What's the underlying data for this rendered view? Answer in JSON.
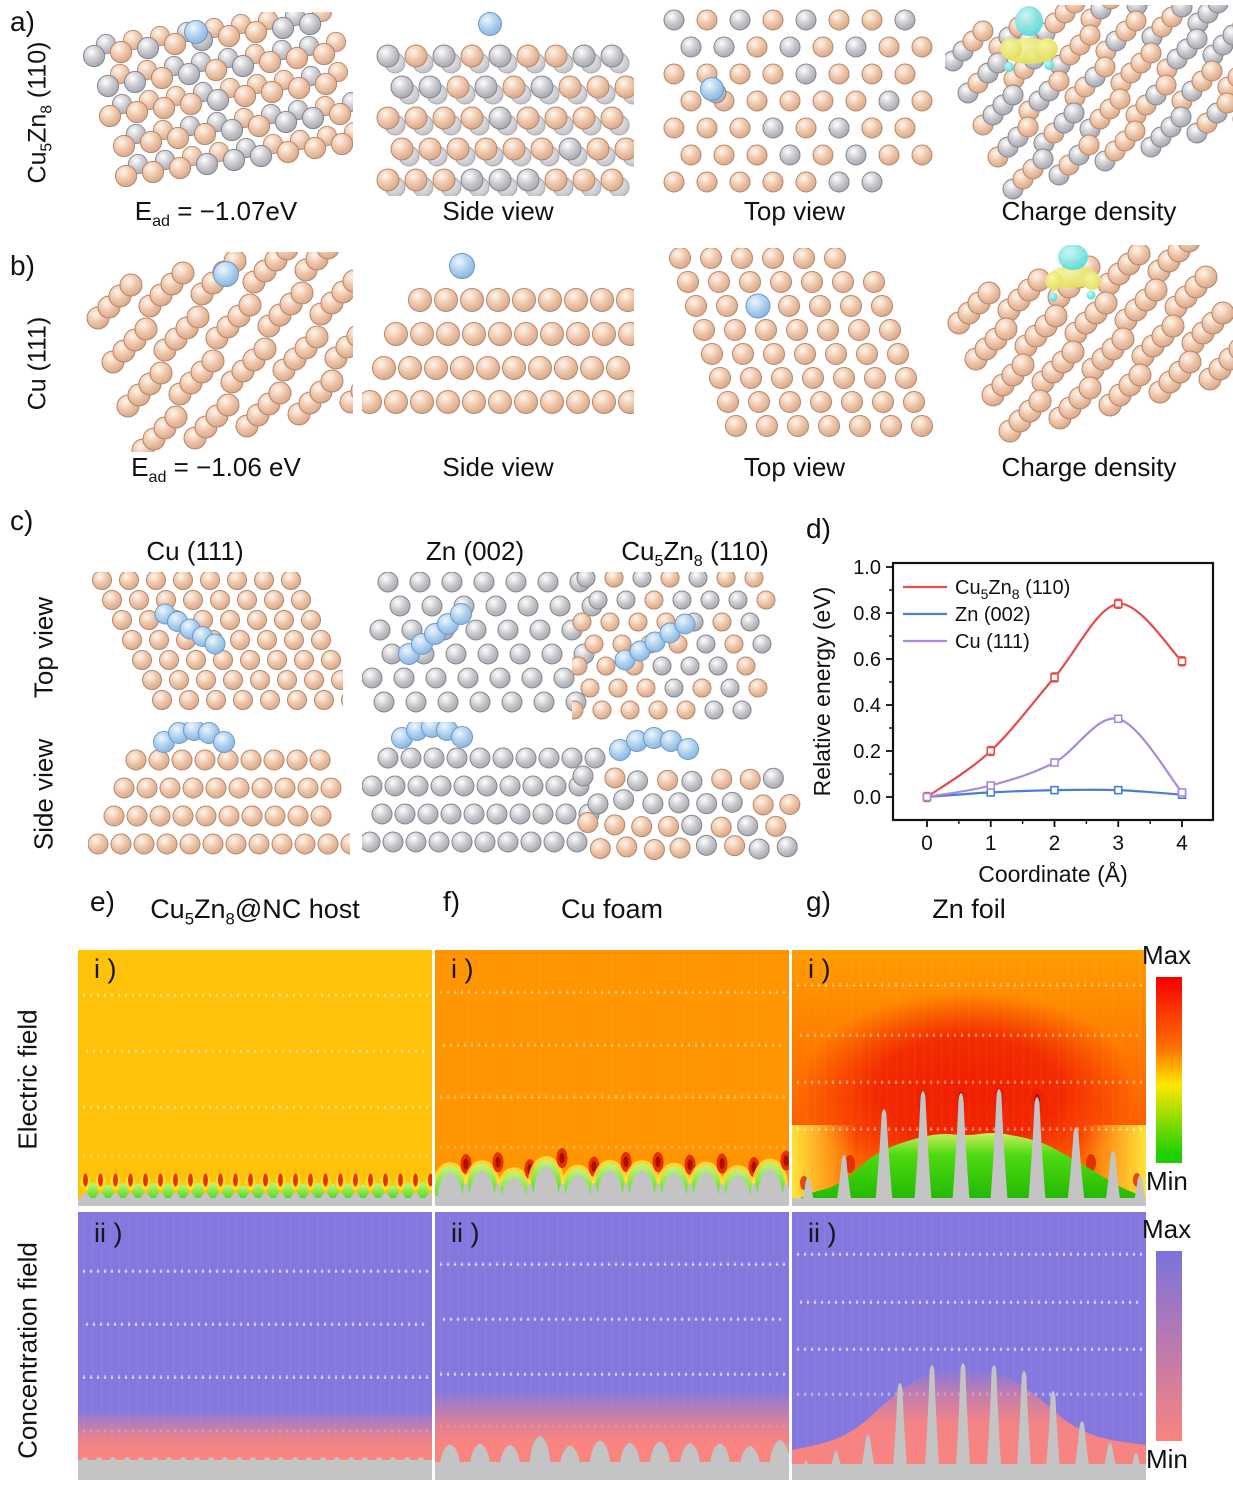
{
  "panels": {
    "a": {
      "label": "a)",
      "side_label": {
        "t1": "Cu",
        "s1": "5",
        "t2": "Zn",
        "s2": "8",
        "t3": "  (110)"
      },
      "captions": {
        "ead": {
          "base": "E",
          "sub": "ad",
          "rest": " = −1.07eV"
        },
        "side": "Side view",
        "top": "Top view",
        "charge": "Charge density"
      }
    },
    "b": {
      "label": "b)",
      "side_label": "Cu (111)",
      "captions": {
        "ead": {
          "base": "E",
          "sub": "ad",
          "rest": " = −1.06 eV"
        },
        "side": "Side view",
        "top": "Top view",
        "charge": "Charge density"
      }
    },
    "c": {
      "label": "c)",
      "row_labels": {
        "top": "Top view",
        "side": "Side view"
      },
      "col1": "Cu (111)",
      "col2": "Zn (002)",
      "col3": {
        "t1": "Cu",
        "s1": "5",
        "t2": "Zn",
        "s2": "8",
        "t3": " (110)"
      }
    },
    "d": {
      "label": "d)"
    },
    "e": {
      "label": "e)",
      "title": {
        "t1": "Cu",
        "s1": "5",
        "t2": "Zn",
        "s2": "8",
        "t3": "@NC host"
      }
    },
    "f": {
      "label": "f)",
      "title": "Cu foam"
    },
    "g": {
      "label": "g)",
      "title": "Zn foil"
    }
  },
  "simulation": {
    "row_labels": {
      "efield": "Electric field",
      "conc": "Concentration field"
    },
    "sub_i": "i )",
    "sub_ii": "ii )",
    "colorbars": {
      "efield": {
        "max": "Max",
        "min": "Min",
        "stops": [
          [
            "#f50000",
            "0%"
          ],
          [
            "#ff7000",
            "38%"
          ],
          [
            "#ffe800",
            "58%"
          ],
          [
            "#1ed000",
            "95%"
          ]
        ]
      },
      "conc": {
        "max": "Max",
        "min": "Min",
        "stops": [
          [
            "#7b72dc",
            "0%"
          ],
          [
            "#fa837f",
            "100%"
          ]
        ]
      }
    }
  },
  "chart_data": {
    "type": "line",
    "title": "",
    "xlabel": "Coordinate (Å)",
    "ylabel": "Relative energy (eV)",
    "x": [
      0,
      1,
      2,
      3,
      4
    ],
    "xticks": [
      0,
      1,
      2,
      3,
      4
    ],
    "yticks": [
      0.0,
      0.2,
      0.4,
      0.6,
      0.8,
      1.0
    ],
    "xlim": [
      -0.5,
      4.5
    ],
    "ylim": [
      -0.1,
      1.0
    ],
    "grid": false,
    "legend_position": "top-left",
    "series": [
      {
        "name": "Cu5Zn8 (110)",
        "segments": [
          {
            "t": "Cu"
          },
          {
            "t": "5",
            "sub": true
          },
          {
            "t": "Zn"
          },
          {
            "t": "8",
            "sub": true
          },
          {
            "t": " (110)"
          }
        ],
        "color": "#e84a4a",
        "values": [
          0.0,
          0.2,
          0.52,
          0.84,
          0.59
        ],
        "error": 0.02
      },
      {
        "name": "Zn (002)",
        "segments": [
          {
            "t": "Zn (002)"
          }
        ],
        "color": "#4a7fd0",
        "values": [
          0.0,
          0.02,
          0.03,
          0.03,
          0.01
        ],
        "error": 0.015
      },
      {
        "name": "Cu (111)",
        "segments": [
          {
            "t": "Cu (111)"
          }
        ],
        "color": "#a98ad8",
        "values": [
          0.0,
          0.05,
          0.15,
          0.34,
          0.02
        ],
        "error": 0.015
      }
    ]
  },
  "colors": {
    "atom_gradients": {
      "cu": [
        "#fff6ec",
        "#eec3a6",
        "#cf9f82"
      ],
      "zn": [
        "#ffffff",
        "#c6c6cc",
        "#9d9da5"
      ],
      "blue": [
        "#eef6fe",
        "#abd0ee",
        "#82abd8"
      ]
    },
    "atom_strokes": {
      "cu": "#b5876b",
      "zn": "#85858e",
      "blue": "#6f98c8"
    },
    "iso_cyan": [
      "#c8f5f3",
      "#43d8d4"
    ],
    "iso_yellow": [
      "#f6f5a2",
      "#dedc50"
    ],
    "green_mound": [
      "#c2f47c",
      "#1ecf00"
    ],
    "green_mass": [
      "#c9f65f",
      "#49df12",
      "#16b400"
    ],
    "gold_bg": "#ffc20a",
    "orange_bg": "#ff9500",
    "zn_bg": [
      "#ff9d00",
      "#ff7500",
      "#fd5c00",
      "#ff6e00"
    ],
    "red_core": "#f01f00",
    "flame_red": "#e83000",
    "flame_yellow": "#ffe424",
    "purple_bg": "#8478de",
    "pink": "#fa8480",
    "substrate": "#c4c4c4",
    "axis_color": "#111111"
  }
}
